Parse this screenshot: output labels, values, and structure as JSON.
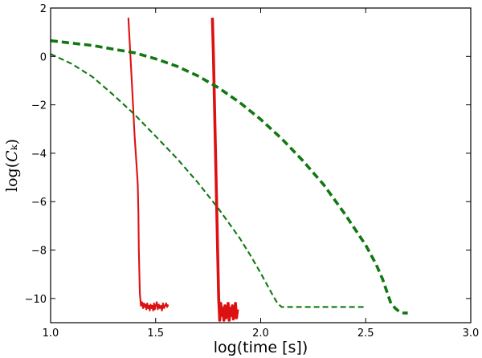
{
  "chart_data": {
    "type": "line",
    "xlabel": "log(time [s])",
    "ylabel": "log(𝐶ₖ)",
    "xlim": [
      1.0,
      3.0
    ],
    "ylim": [
      -11,
      2
    ],
    "xticks": [
      "1.0",
      "1.5",
      "2.0",
      "2.5",
      "3.0"
    ],
    "yticks": [
      "2",
      "0",
      "−2",
      "−4",
      "−6",
      "−8",
      "−10"
    ],
    "grid": false,
    "legend": "none",
    "series": [
      {
        "color": "#dd1111",
        "style": "solid",
        "weight": "thin",
        "x": [
          1.37,
          1.388,
          1.4,
          1.41,
          1.415,
          1.418,
          1.42,
          1.425,
          1.43,
          1.435,
          1.44,
          1.444,
          1.448,
          1.452,
          1.456,
          1.46,
          1.464,
          1.468,
          1.472,
          1.476,
          1.48,
          1.484,
          1.488,
          1.492,
          1.496,
          1.5,
          1.505,
          1.51,
          1.515,
          1.52,
          1.525,
          1.53,
          1.535,
          1.54,
          1.545,
          1.55,
          1.555,
          1.56
        ],
        "y": [
          1.6,
          -1.3,
          -3.3,
          -4.6,
          -5.3,
          -6.5,
          -8.0,
          -9.8,
          -10.3,
          -10.15,
          -10.4,
          -10.2,
          -10.35,
          -10.25,
          -10.45,
          -10.2,
          -10.4,
          -10.3,
          -10.5,
          -10.25,
          -10.4,
          -10.3,
          -10.5,
          -10.2,
          -10.45,
          -10.3,
          -10.15,
          -10.45,
          -10.25,
          -10.4,
          -10.3,
          -10.5,
          -10.2,
          -10.4,
          -10.3,
          -10.2,
          -10.35,
          -10.25
        ]
      },
      {
        "color": "#dd1111",
        "style": "solid",
        "weight": "thick",
        "x": [
          1.77,
          1.775,
          1.78,
          1.785,
          1.79,
          1.795,
          1.8,
          1.805,
          1.81,
          1.815,
          1.82,
          1.825,
          1.83,
          1.835,
          1.84,
          1.845,
          1.85,
          1.855,
          1.86,
          1.865,
          1.87,
          1.875,
          1.88,
          1.885,
          1.89
        ],
        "y": [
          1.6,
          0.0,
          -2.0,
          -4.0,
          -6.0,
          -8.0,
          -10.0,
          -10.9,
          -10.2,
          -10.7,
          -10.4,
          -10.9,
          -10.3,
          -10.8,
          -10.5,
          -10.2,
          -10.9,
          -10.4,
          -10.7,
          -10.3,
          -10.85,
          -10.5,
          -10.2,
          -10.8,
          -10.45
        ]
      },
      {
        "color": "#117711",
        "style": "dashed",
        "weight": "thin",
        "x": [
          1.0,
          1.1,
          1.2,
          1.3,
          1.4,
          1.5,
          1.6,
          1.7,
          1.8,
          1.9,
          1.95,
          2.0,
          2.05,
          2.08,
          2.1,
          2.12,
          2.2,
          2.3,
          2.4,
          2.5
        ],
        "y": [
          0.1,
          -0.3,
          -0.85,
          -1.6,
          -2.4,
          -3.3,
          -4.2,
          -5.2,
          -6.3,
          -7.5,
          -8.2,
          -8.95,
          -9.75,
          -10.2,
          -10.35,
          -10.35,
          -10.35,
          -10.35,
          -10.35,
          -10.35
        ]
      },
      {
        "color": "#117711",
        "style": "dashed",
        "weight": "thick",
        "x": [
          1.0,
          1.1,
          1.2,
          1.3,
          1.4,
          1.5,
          1.6,
          1.7,
          1.8,
          1.9,
          2.0,
          2.1,
          2.2,
          2.3,
          2.4,
          2.5,
          2.55,
          2.58,
          2.6,
          2.62,
          2.64,
          2.66,
          2.68,
          2.7
        ],
        "y": [
          0.65,
          0.55,
          0.45,
          0.3,
          0.15,
          -0.1,
          -0.4,
          -0.8,
          -1.3,
          -1.9,
          -2.6,
          -3.4,
          -4.3,
          -5.3,
          -6.5,
          -7.8,
          -8.6,
          -9.2,
          -9.7,
          -10.2,
          -10.4,
          -10.55,
          -10.6,
          -10.6
        ]
      }
    ]
  }
}
